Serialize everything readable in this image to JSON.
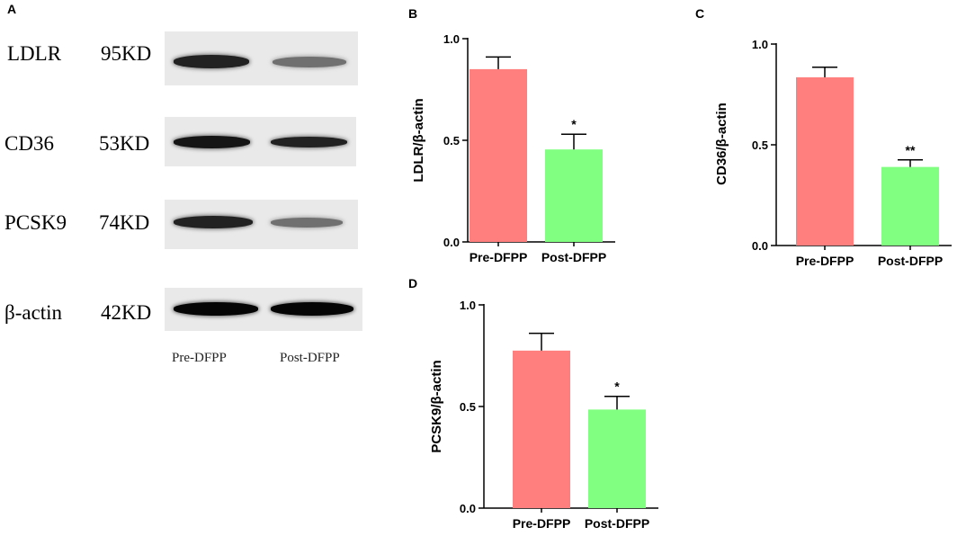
{
  "panel_a": {
    "letter": "A",
    "rows": [
      {
        "protein": "LDLR",
        "size": "95KD",
        "pre_intensity": 0.85,
        "post_intensity": 0.45
      },
      {
        "protein": "CD36",
        "size": "53KD",
        "pre_intensity": 0.92,
        "post_intensity": 0.85
      },
      {
        "protein": "PCSK9",
        "size": "74KD",
        "pre_intensity": 0.85,
        "post_intensity": 0.45
      },
      {
        "protein": "β-actin",
        "size": "42KD",
        "pre_intensity": 1.0,
        "post_intensity": 1.0
      }
    ],
    "lanes": [
      "Pre-DFPP",
      "Post-DFPP"
    ]
  },
  "chart_data": [
    {
      "letter": "B",
      "type": "bar",
      "categories": [
        "Pre-DFPP",
        "Post-DFPP"
      ],
      "values": [
        0.85,
        0.455
      ],
      "errors": [
        0.06,
        0.075
      ],
      "significance": [
        "",
        "*"
      ],
      "colors": [
        "#ff7f7f",
        "#80ff80"
      ],
      "ylabel": "LDLR/β-actin",
      "ylim": [
        0,
        1.0
      ],
      "yticks": [
        "0.0",
        "0.5",
        "1.0"
      ]
    },
    {
      "letter": "C",
      "type": "bar",
      "categories": [
        "Pre-DFPP",
        "Post-DFPP"
      ],
      "values": [
        0.835,
        0.39
      ],
      "errors": [
        0.05,
        0.035
      ],
      "significance": [
        "",
        "**"
      ],
      "colors": [
        "#ff7f7f",
        "#80ff80"
      ],
      "ylabel": "CD36/β-actin",
      "ylim": [
        0,
        1.0
      ],
      "yticks": [
        "0.0",
        "0.5",
        "1.0"
      ]
    },
    {
      "letter": "D",
      "type": "bar",
      "categories": [
        "Pre-DFPP",
        "Post-DFPP"
      ],
      "values": [
        0.775,
        0.485
      ],
      "errors": [
        0.085,
        0.065
      ],
      "significance": [
        "",
        "*"
      ],
      "colors": [
        "#ff7f7f",
        "#80ff80"
      ],
      "ylabel": "PCSK9/β-actin",
      "ylim": [
        0,
        1.0
      ],
      "yticks": [
        "0.0",
        "0.5",
        "1.0"
      ]
    }
  ]
}
